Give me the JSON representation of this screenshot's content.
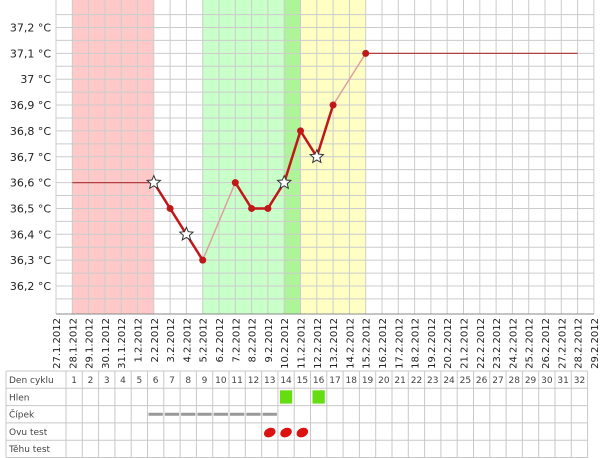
{
  "chart_data": {
    "type": "line",
    "title": "",
    "xlabel": "",
    "ylabel": "",
    "y_unit": "°C",
    "ylim": [
      36.1,
      37.25
    ],
    "y_ticks": [
      "36,2 °C",
      "36,3 °C",
      "36,4 °C",
      "36,5 °C",
      "36,6 °C",
      "36,7 °C",
      "36,8 °C",
      "36,9 °C",
      "37 °C",
      "37,1 °C",
      "37,2 °C"
    ],
    "y_tick_values": [
      36.2,
      36.3,
      36.4,
      36.5,
      36.6,
      36.7,
      36.8,
      36.9,
      37.0,
      37.1,
      37.2
    ],
    "x_labels": [
      "27.1.2012",
      "28.1.2012",
      "29.1.2012",
      "30.1.2012",
      "31.1.2012",
      "1.2.2012",
      "2.2.2012",
      "3.2.2012",
      "4.2.2012",
      "5.2.2012",
      "6.2.2012",
      "7.2.2012",
      "8.2.2012",
      "9.2.2012",
      "10.2.2012",
      "11.2.2012",
      "12.2.2012",
      "13.2.2012",
      "14.2.2012",
      "15.2.2012",
      "16.2.2012",
      "17.2.2012",
      "18.2.2012",
      "19.2.2012",
      "20.2.2012",
      "21.2.2012",
      "22.2.2012",
      "23.2.2012",
      "24.2.2012",
      "25.2.2012",
      "26.2.2012",
      "27.2.2012",
      "28.2.2012",
      "29.2.2012"
    ],
    "phases": [
      {
        "from": "28.1.2012",
        "to": "2.2.2012",
        "color": "#ffc9c9"
      },
      {
        "from": "5.2.2012",
        "to": "10.2.2012",
        "color": "#c9ffc9"
      },
      {
        "from": "10.2.2012",
        "to": "11.2.2012",
        "color": "#aef59a"
      },
      {
        "from": "11.2.2012",
        "to": "15.2.2012",
        "color": "#ffffc4"
      }
    ],
    "series": [
      {
        "points": [
          {
            "x": "2.2.2012",
            "y": 36.6,
            "marker": "star"
          },
          {
            "x": "3.2.2012",
            "y": 36.5,
            "marker": "dot"
          },
          {
            "x": "4.2.2012",
            "y": 36.4,
            "marker": "star"
          },
          {
            "x": "5.2.2012",
            "y": 36.3,
            "marker": "dot"
          },
          {
            "x": "7.2.2012",
            "y": 36.6,
            "marker": "dot"
          },
          {
            "x": "8.2.2012",
            "y": 36.5,
            "marker": "dot"
          },
          {
            "x": "9.2.2012",
            "y": 36.5,
            "marker": "dot"
          },
          {
            "x": "10.2.2012",
            "y": 36.6,
            "marker": "star"
          },
          {
            "x": "11.2.2012",
            "y": 36.8,
            "marker": "dot"
          },
          {
            "x": "12.2.2012",
            "y": 36.7,
            "marker": "star"
          },
          {
            "x": "13.2.2012",
            "y": 36.9,
            "marker": "dot"
          },
          {
            "x": "15.2.2012",
            "y": 37.1,
            "marker": "dot"
          }
        ],
        "lead_line": {
          "from": "28.1.2012",
          "to": "2.2.2012",
          "y": 36.6
        },
        "trail_line": {
          "from": "15.2.2012",
          "to": "28.2.2012",
          "y": 37.1
        }
      }
    ],
    "grid": true
  },
  "cycle_table": {
    "row_labels": [
      "Den cyklu",
      "Hlen",
      "Čípek",
      "Ovu test",
      "Těhu test"
    ],
    "days": [
      "1",
      "2",
      "3",
      "4",
      "5",
      "6",
      "7",
      "8",
      "9",
      "10",
      "11",
      "12",
      "13",
      "14",
      "15",
      "16",
      "17",
      "18",
      "19",
      "20",
      "21",
      "22",
      "23",
      "24",
      "25",
      "26",
      "27",
      "28",
      "29",
      "30",
      "31",
      "32"
    ],
    "hlen_marks": [
      14,
      16
    ],
    "cipek_marks": [
      6,
      7,
      8,
      9,
      10,
      11,
      12,
      13
    ],
    "ovu_marks": [
      13,
      14,
      15
    ],
    "colors": {
      "hlen": "#66dd11",
      "cipek": "#999999",
      "ovu": "#dd1111"
    }
  },
  "colors": {
    "line": "#c01818",
    "grid": "#cccccc",
    "flat": "#b04040",
    "connector": "#dda0a0"
  }
}
